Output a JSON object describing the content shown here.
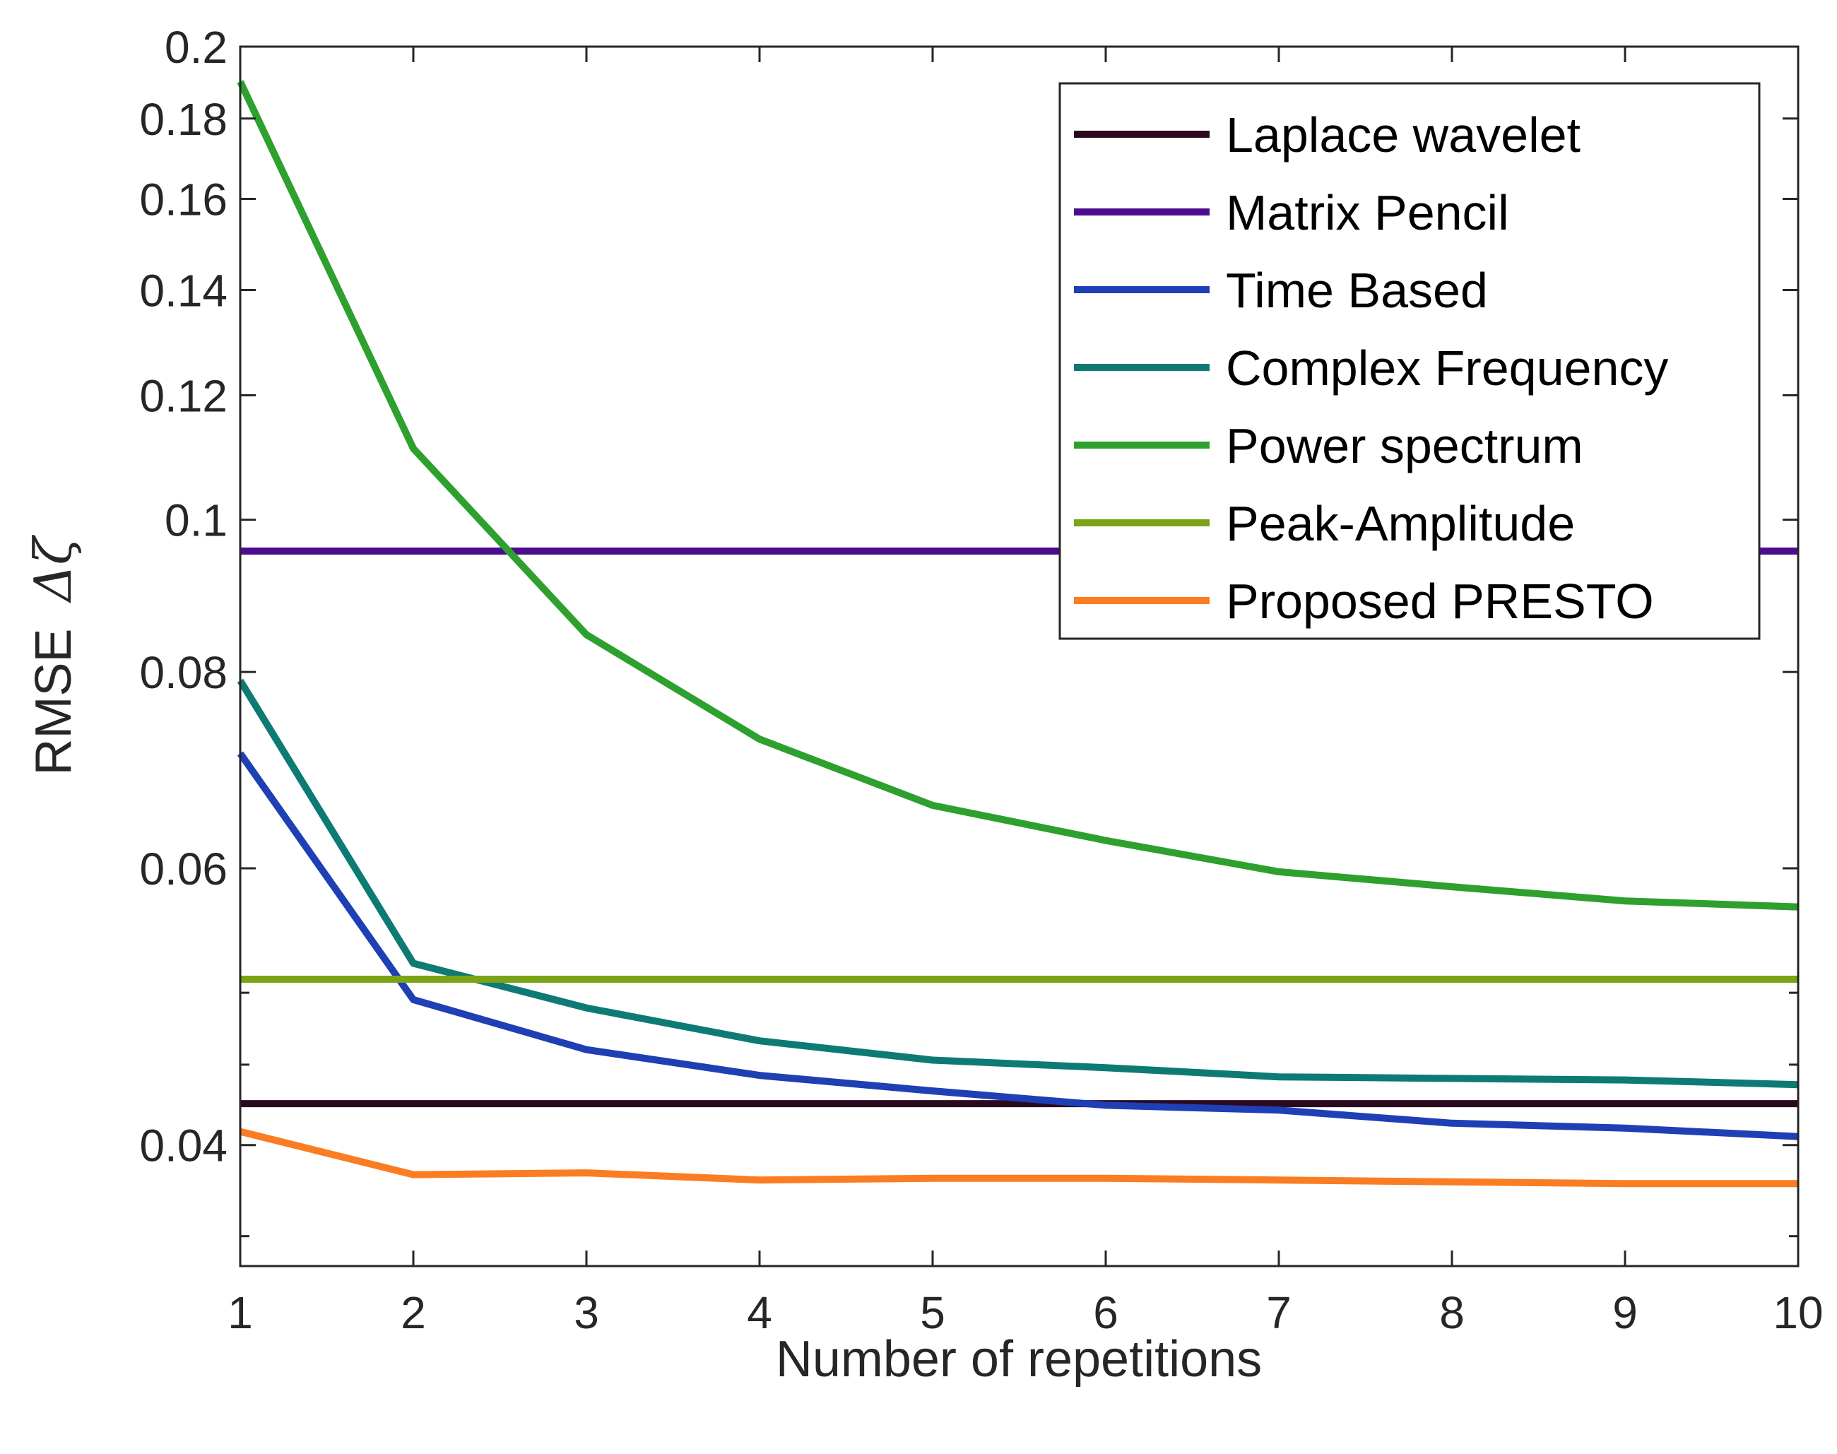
{
  "chart_data": {
    "type": "line",
    "x": [
      1,
      2,
      3,
      4,
      5,
      6,
      7,
      8,
      9,
      10
    ],
    "xlabel": "Number of repetitions",
    "ylabel": "RMSE",
    "ylabel_symbol": "Δζ",
    "xlim": [
      1,
      10
    ],
    "ylim": [
      0.0335,
      0.2
    ],
    "yscale": "log",
    "xticks": [
      1,
      2,
      3,
      4,
      5,
      6,
      7,
      8,
      9,
      10
    ],
    "xtick_labels": [
      "1",
      "2",
      "3",
      "4",
      "5",
      "6",
      "7",
      "8",
      "9",
      "10"
    ],
    "yticks": [
      0.04,
      0.06,
      0.08,
      0.1,
      0.12,
      0.14,
      0.16,
      0.18,
      0.2
    ],
    "ytick_labels": [
      "0.04",
      "0.06",
      "0.08",
      "0.1",
      "0.12",
      "0.14",
      "0.16",
      "0.18",
      "0.2"
    ],
    "yminor_ticks": [
      0.035,
      0.045,
      0.05
    ],
    "grid": false,
    "legend_position": "top-right",
    "series": [
      {
        "name": "Laplace wavelet",
        "color": "#2b0a1f",
        "values": [
          0.0425,
          0.0425,
          0.0425,
          0.0425,
          0.0425,
          0.0425,
          0.0425,
          0.0425,
          0.0425,
          0.0425
        ]
      },
      {
        "name": "Matrix Pencil",
        "color": "#4b0c8f",
        "values": [
          0.0955,
          0.0955,
          0.0955,
          0.0955,
          0.0955,
          0.0955,
          0.0955,
          0.0955,
          0.0955,
          0.0955
        ]
      },
      {
        "name": "Time Based",
        "color": "#1f3fb5",
        "values": [
          0.071,
          0.0495,
          0.046,
          0.0443,
          0.0433,
          0.0424,
          0.0421,
          0.0413,
          0.041,
          0.0405
        ]
      },
      {
        "name": "Complex Frequency",
        "color": "#0e7a74",
        "values": [
          0.079,
          0.0522,
          0.0489,
          0.0466,
          0.0453,
          0.0448,
          0.0442,
          0.0441,
          0.044,
          0.0437
        ]
      },
      {
        "name": "Power spectrum",
        "color": "#2ea02e",
        "values": [
          0.19,
          0.111,
          0.0845,
          0.0725,
          0.0658,
          0.0625,
          0.0597,
          0.0584,
          0.0572,
          0.0567
        ]
      },
      {
        "name": "Peak-Amplitude",
        "color": "#7aa316",
        "values": [
          0.051,
          0.051,
          0.051,
          0.051,
          0.051,
          0.051,
          0.051,
          0.051,
          0.051,
          0.051
        ]
      },
      {
        "name": "Proposed PRESTO",
        "color": "#fa7d24",
        "values": [
          0.0408,
          0.0383,
          0.0384,
          0.038,
          0.0381,
          0.0381,
          0.038,
          0.0379,
          0.0378,
          0.0378
        ]
      }
    ]
  }
}
